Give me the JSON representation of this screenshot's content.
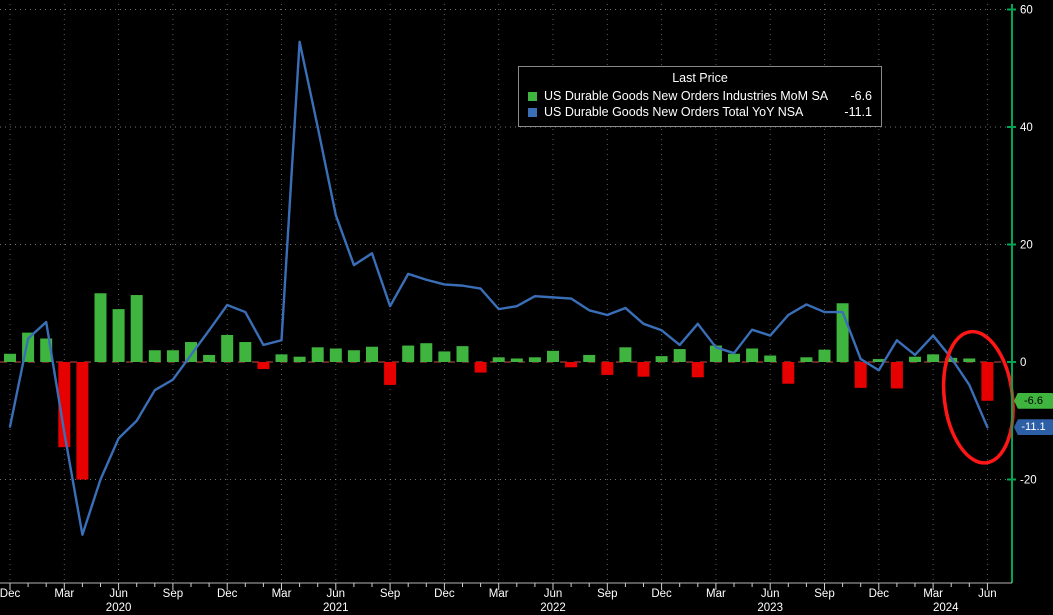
{
  "chart_data": {
    "type": "mixed",
    "x_start": "Dec 2019",
    "x_interval": "monthly",
    "series": [
      {
        "name": "US Durable Goods New Orders Industries MoM SA",
        "type": "bar",
        "last_price": -6.6,
        "values": [
          1.4,
          5.0,
          4.0,
          -14.5,
          -20.0,
          11.7,
          9.0,
          11.4,
          2.0,
          2.0,
          3.4,
          1.2,
          4.6,
          3.4,
          -1.2,
          1.3,
          0.9,
          2.5,
          2.3,
          2.0,
          2.6,
          -3.9,
          2.8,
          3.2,
          1.8,
          2.7,
          -1.8,
          0.8,
          0.6,
          0.8,
          1.9,
          -0.9,
          1.2,
          -2.2,
          2.5,
          -2.5,
          1.0,
          2.2,
          -2.6,
          2.8,
          1.4,
          2.3,
          1.1,
          -3.7,
          0.8,
          2.1,
          10.0,
          -4.4,
          0.5,
          -4.5,
          0.9,
          1.3,
          0.7,
          0.6,
          -6.6
        ]
      },
      {
        "name": "US Durable Goods New Orders Total YoY NSA",
        "type": "line",
        "last_price": -11.1,
        "values": [
          -11.0,
          4.0,
          6.8,
          -12.0,
          -29.4,
          -20.0,
          -13.0,
          -10.0,
          -4.8,
          -3.0,
          1.2,
          5.4,
          9.7,
          8.5,
          2.9,
          3.7,
          54.5,
          40.0,
          25.0,
          16.5,
          18.5,
          9.5,
          15.0,
          14.0,
          13.2,
          13.0,
          12.5,
          9.0,
          9.5,
          11.2,
          11.0,
          10.8,
          8.8,
          8.0,
          9.2,
          6.5,
          5.4,
          2.9,
          6.5,
          2.5,
          1.5,
          5.5,
          4.5,
          8.0,
          9.8,
          8.5,
          8.5,
          0.5,
          -1.4,
          3.7,
          1.2,
          4.5,
          0.7,
          -3.9,
          -11.1
        ]
      }
    ],
    "x_ticks": {
      "indices": [
        0,
        3,
        6,
        9,
        12,
        15,
        18,
        21,
        24,
        27,
        30,
        33,
        36,
        39,
        42,
        45,
        48,
        51,
        54
      ],
      "labels": [
        "Dec",
        "Mar",
        "Jun",
        "Sep",
        "Dec",
        "Mar",
        "Jun",
        "Sep",
        "Dec",
        "Mar",
        "Jun",
        "Sep",
        "Dec",
        "Mar",
        "Jun",
        "Sep",
        "Dec",
        "Mar",
        "Jun"
      ]
    },
    "year_labels": [
      {
        "label": "2020",
        "index": 6
      },
      {
        "label": "2021",
        "index": 18
      },
      {
        "label": "2022",
        "index": 30
      },
      {
        "label": "2023",
        "index": 42
      },
      {
        "label": "2024",
        "index": 51.7
      }
    ],
    "y_ticks": [
      60,
      40,
      20,
      0,
      -20
    ],
    "ylim": [
      -32,
      62
    ],
    "grid": true,
    "legend": {
      "title": "Last Price",
      "position": "top-center",
      "entries": [
        {
          "label": "US Durable Goods New Orders Industries MoM SA",
          "value": "-6.6",
          "swatch": "#3fb53f"
        },
        {
          "label": "US Durable Goods New Orders Total YoY NSA",
          "value": "-11.1",
          "swatch": "#3a6fb8"
        }
      ]
    },
    "last_price_tags": [
      {
        "text": "-6.6",
        "value": -6.6,
        "bg": "#3fb53f",
        "fg": "#000000"
      },
      {
        "text": "-11.1",
        "value": -11.1,
        "bg": "#2d5fa6",
        "fg": "#ffffff"
      }
    ],
    "annotation": {
      "shape": "ellipse",
      "highlights": "latest values circled in red"
    },
    "colors": {
      "background": "#000000",
      "bar_positive": "#3fb53f",
      "bar_negative": "#e60000",
      "line": "#3a6fb8",
      "axis": "#00a651",
      "grid": "#9a9a9a",
      "zero_line": "#a04038",
      "text": "#ffffff",
      "annotation": "#ff1616"
    }
  }
}
